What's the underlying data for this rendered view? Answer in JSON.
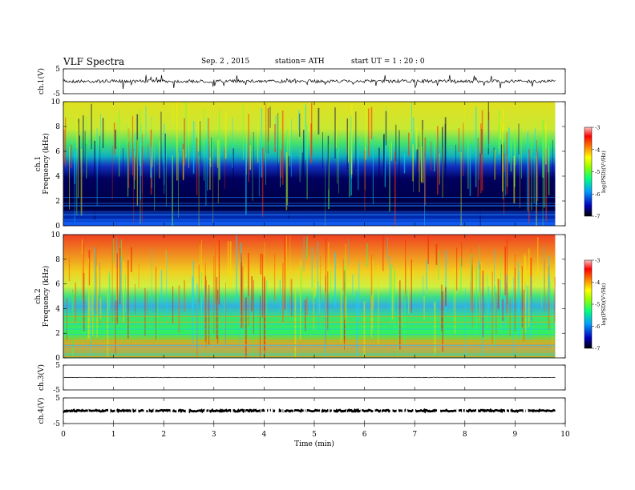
{
  "header": {
    "title": "VLF  Spectra",
    "date": "Sep. 2  , 2015",
    "station": "station= ATH",
    "start": "start  UT  =   1  : 20 : 0"
  },
  "chart_data": {
    "type": "heatmap",
    "xlabel": "Time  (min)",
    "x_ticks": [
      "0",
      "1",
      "2",
      "3",
      "4",
      "5",
      "6",
      "7",
      "8",
      "9",
      "10"
    ],
    "xlim": [
      0,
      10
    ],
    "data_end_min": 9.8,
    "panels": [
      {
        "id": "ch1-waveform",
        "type": "line",
        "ylabel": "ch.1(V)",
        "ylim": [
          -5,
          5
        ],
        "y_ticks": [
          "5",
          "-5"
        ],
        "color": "#000000"
      },
      {
        "id": "ch1-spectrogram",
        "type": "heatmap",
        "ylabel_top": "ch.1",
        "ylabel": "Frequency  (kHz)",
        "ylim": [
          0,
          10
        ],
        "y_ticks": [
          "0",
          "2",
          "4",
          "6",
          "8",
          "10"
        ],
        "colorbar": {
          "label": "log(PSD)(V²/Hz)",
          "range": [
            -7,
            -3
          ],
          "ticks": [
            "-3",
            "-4",
            "-5",
            "-6",
            "-7"
          ]
        }
      },
      {
        "id": "ch2-spectrogram",
        "type": "heatmap",
        "ylabel_top": "ch.2",
        "ylabel": "Frequency  (kHz)",
        "ylim": [
          0,
          10
        ],
        "y_ticks": [
          "0",
          "2",
          "4",
          "6",
          "8",
          "10"
        ],
        "colorbar": {
          "label": "log(PSD)(V²/Hz)",
          "range": [
            -7,
            -3
          ],
          "ticks": [
            "-3",
            "-4",
            "-5",
            "-6",
            "-7"
          ]
        }
      },
      {
        "id": "ch3-waveform",
        "type": "line",
        "ylabel": "ch.3(V)",
        "ylim": [
          -5,
          5
        ],
        "y_ticks": [
          "5",
          "-5"
        ],
        "color": "#000000"
      },
      {
        "id": "ch4-waveform",
        "type": "line",
        "ylabel": "ch.4(V)",
        "ylim": [
          -5,
          5
        ],
        "y_ticks": [
          "5",
          "-5"
        ],
        "color": "#000000"
      }
    ],
    "colormap": [
      "#7f0000",
      "#ff0000",
      "#ff8c00",
      "#ffff00",
      "#00ff00",
      "#00ffff",
      "#0000ff",
      "#000080"
    ],
    "grid": false
  }
}
